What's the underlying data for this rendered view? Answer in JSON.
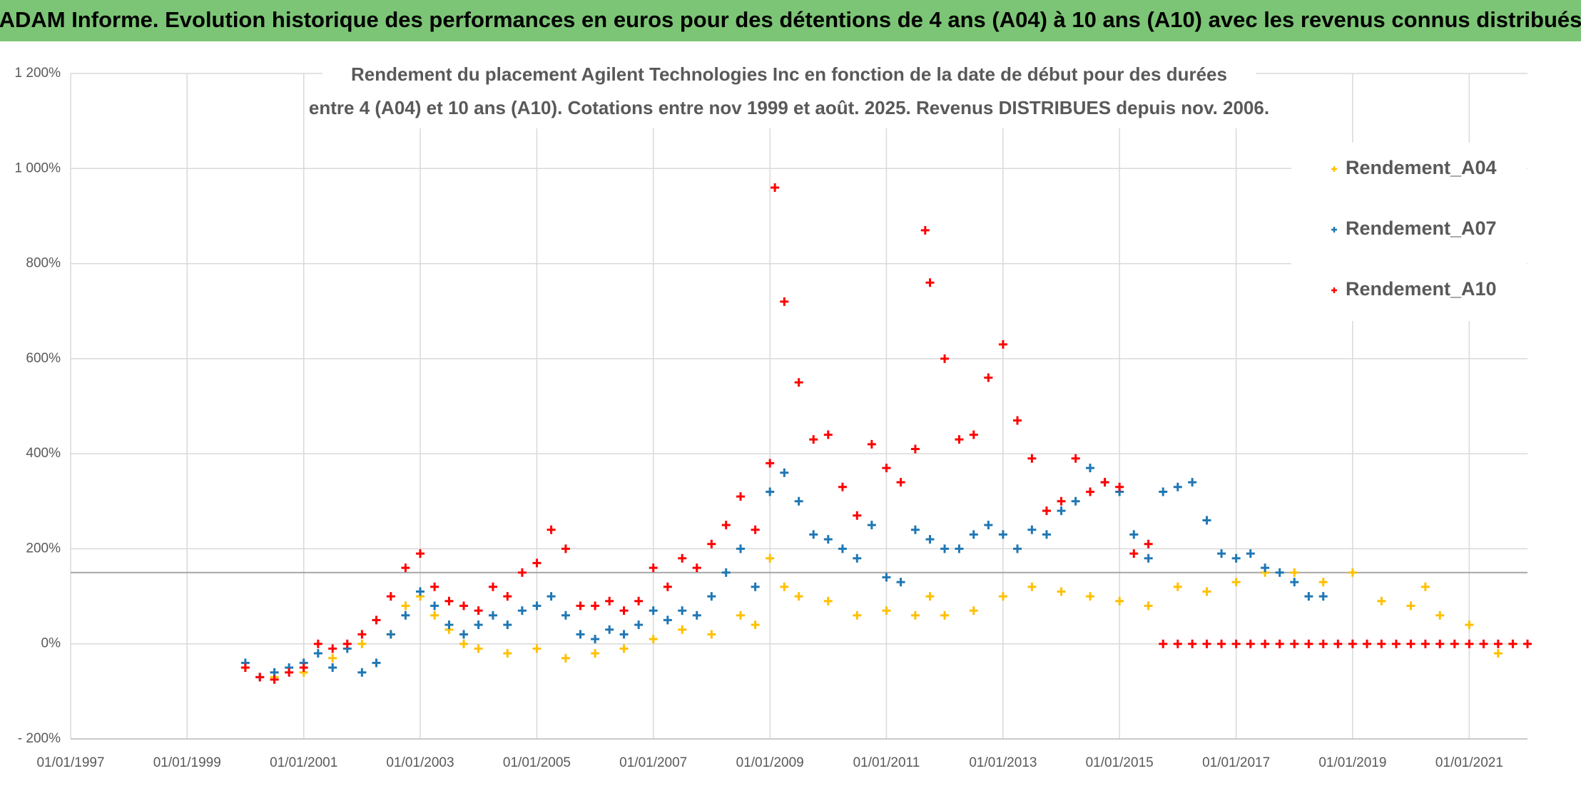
{
  "header": {
    "title": "ADAM Informe. Evolution historique des performances en euros pour des détentions de 4 ans (A04) à 10 ans (A10) avec les revenus connus distribués"
  },
  "chart_data": {
    "type": "scatter",
    "title": "Rendement du placement Agilent Technologies Inc en fonction de la date de début pour des durées",
    "subtitle": "entre 4 (A04) et 10 ans (A10). Cotations entre nov 1999 et août. 2025. Revenus DISTRIBUES depuis nov. 2006.",
    "xlim": [
      "1997-01-01",
      "2022-01-01"
    ],
    "xticks": [
      {
        "value": "1997-01-01",
        "label": "01/01/1997"
      },
      {
        "value": "1999-01-01",
        "label": "01/01/1999"
      },
      {
        "value": "2001-01-01",
        "label": "01/01/2001"
      },
      {
        "value": "2003-01-01",
        "label": "01/01/2003"
      },
      {
        "value": "2005-01-01",
        "label": "01/01/2005"
      },
      {
        "value": "2007-01-01",
        "label": "01/01/2007"
      },
      {
        "value": "2009-01-01",
        "label": "01/01/2009"
      },
      {
        "value": "2011-01-01",
        "label": "01/01/2011"
      },
      {
        "value": "2013-01-01",
        "label": "01/01/2013"
      },
      {
        "value": "2015-01-01",
        "label": "01/01/2015"
      },
      {
        "value": "2017-01-01",
        "label": "01/01/2017"
      },
      {
        "value": "2019-01-01",
        "label": "01/01/2019"
      },
      {
        "value": "2021-01-01",
        "label": "01/01/2021"
      }
    ],
    "ylim": [
      -200,
      1200
    ],
    "yticks": [
      {
        "value": -200,
        "label": "- 200%"
      },
      {
        "value": 0,
        "label": "0%"
      },
      {
        "value": 200,
        "label": "200%"
      },
      {
        "value": 400,
        "label": "400%"
      },
      {
        "value": 600,
        "label": "600%"
      },
      {
        "value": 800,
        "label": "800%"
      },
      {
        "value": 1000,
        "label": "1 000%"
      },
      {
        "value": 1200,
        "label": "1 200%"
      }
    ],
    "reference_line": 150,
    "grid": true,
    "legend": "right",
    "series": [
      {
        "name": "Rendement_A04",
        "color": "#ffc000",
        "x": [
          "2000-01-01",
          "2000-07-01",
          "2001-01-01",
          "2001-07-01",
          "2002-01-01",
          "2002-07-01",
          "2002-10-01",
          "2003-01-01",
          "2003-04-01",
          "2003-07-01",
          "2003-10-01",
          "2004-01-01",
          "2004-07-01",
          "2005-01-01",
          "2005-07-01",
          "2006-01-01",
          "2006-07-01",
          "2007-01-01",
          "2007-07-01",
          "2008-01-01",
          "2008-07-01",
          "2008-10-01",
          "2009-01-01",
          "2009-04-01",
          "2009-07-01",
          "2010-01-01",
          "2010-07-01",
          "2011-01-01",
          "2011-07-01",
          "2011-10-01",
          "2012-01-01",
          "2012-07-01",
          "2013-01-01",
          "2013-07-01",
          "2014-01-01",
          "2014-07-01",
          "2015-01-01",
          "2015-07-01",
          "2016-01-01",
          "2016-07-01",
          "2017-01-01",
          "2017-07-01",
          "2018-01-01",
          "2018-07-01",
          "2019-01-01",
          "2019-07-01",
          "2020-01-01",
          "2020-04-01",
          "2020-07-01",
          "2021-01-01",
          "2021-07-01",
          "2021-10-01"
        ],
        "values": [
          -50,
          -70,
          -60,
          -30,
          0,
          20,
          80,
          100,
          60,
          30,
          0,
          -10,
          -20,
          -10,
          -30,
          -20,
          -10,
          10,
          30,
          20,
          60,
          40,
          180,
          120,
          100,
          90,
          60,
          70,
          60,
          100,
          60,
          70,
          100,
          120,
          110,
          100,
          90,
          80,
          120,
          110,
          130,
          150,
          150,
          130,
          150,
          90,
          80,
          120,
          60,
          40,
          -20,
          0
        ]
      },
      {
        "name": "Rendement_A07",
        "color": "#1f77b4",
        "x": [
          "2000-01-01",
          "2000-04-01",
          "2000-07-01",
          "2000-10-01",
          "2001-01-01",
          "2001-04-01",
          "2001-07-01",
          "2001-10-01",
          "2002-01-01",
          "2002-04-01",
          "2002-07-01",
          "2002-10-01",
          "2003-01-01",
          "2003-04-01",
          "2003-07-01",
          "2003-10-01",
          "2004-01-01",
          "2004-04-01",
          "2004-07-01",
          "2004-10-01",
          "2005-01-01",
          "2005-04-01",
          "2005-07-01",
          "2005-10-01",
          "2006-01-01",
          "2006-04-01",
          "2006-07-01",
          "2006-10-01",
          "2007-01-01",
          "2007-04-01",
          "2007-07-01",
          "2007-10-01",
          "2008-01-01",
          "2008-04-01",
          "2008-07-01",
          "2008-10-01",
          "2009-01-01",
          "2009-04-01",
          "2009-07-01",
          "2009-10-01",
          "2010-01-01",
          "2010-04-01",
          "2010-07-01",
          "2010-10-01",
          "2011-01-01",
          "2011-04-01",
          "2011-07-01",
          "2011-10-01",
          "2012-01-01",
          "2012-04-01",
          "2012-07-01",
          "2012-10-01",
          "2013-01-01",
          "2013-04-01",
          "2013-07-01",
          "2013-10-01",
          "2014-01-01",
          "2014-04-01",
          "2014-07-01",
          "2014-10-01",
          "2015-01-01",
          "2015-04-01",
          "2015-07-01",
          "2015-10-01",
          "2016-01-01",
          "2016-04-01",
          "2016-07-01",
          "2016-10-01",
          "2017-01-01",
          "2017-04-01",
          "2017-07-01",
          "2017-10-01",
          "2018-01-01",
          "2018-04-01",
          "2018-07-01"
        ],
        "values": [
          -40,
          -70,
          -60,
          -50,
          -40,
          -20,
          -50,
          -10,
          -60,
          -40,
          20,
          60,
          110,
          80,
          40,
          20,
          40,
          60,
          40,
          70,
          80,
          100,
          60,
          20,
          10,
          30,
          20,
          40,
          70,
          50,
          70,
          60,
          100,
          150,
          200,
          120,
          320,
          360,
          300,
          230,
          220,
          200,
          180,
          250,
          140,
          130,
          240,
          220,
          200,
          200,
          230,
          250,
          230,
          200,
          240,
          230,
          280,
          300,
          370,
          340,
          320,
          230,
          180,
          320,
          330,
          340,
          260,
          190,
          180,
          190,
          160,
          150,
          130,
          100,
          100
        ]
      },
      {
        "name": "Rendement_A10",
        "color": "#ff0000",
        "x": [
          "2000-01-01",
          "2000-04-01",
          "2000-07-01",
          "2000-10-01",
          "2001-01-01",
          "2001-04-01",
          "2001-07-01",
          "2001-10-01",
          "2002-01-01",
          "2002-04-01",
          "2002-07-01",
          "2002-10-01",
          "2003-01-01",
          "2003-04-01",
          "2003-07-01",
          "2003-10-01",
          "2004-01-01",
          "2004-04-01",
          "2004-07-01",
          "2004-10-01",
          "2005-01-01",
          "2005-04-01",
          "2005-07-01",
          "2005-10-01",
          "2006-01-01",
          "2006-04-01",
          "2006-07-01",
          "2006-10-01",
          "2007-01-01",
          "2007-04-01",
          "2007-07-01",
          "2007-10-01",
          "2008-01-01",
          "2008-04-01",
          "2008-07-01",
          "2008-10-01",
          "2009-01-01",
          "2009-02-01",
          "2009-04-01",
          "2009-07-01",
          "2009-10-01",
          "2010-01-01",
          "2010-04-01",
          "2010-07-01",
          "2010-10-01",
          "2011-01-01",
          "2011-04-01",
          "2011-07-01",
          "2011-09-01",
          "2011-10-01",
          "2012-01-01",
          "2012-04-01",
          "2012-07-01",
          "2012-10-01",
          "2013-01-01",
          "2013-04-01",
          "2013-07-01",
          "2013-10-01",
          "2014-01-01",
          "2014-04-01",
          "2014-07-01",
          "2014-10-01",
          "2015-01-01",
          "2015-04-01",
          "2015-07-01",
          "2015-10-01",
          "2016-01-01",
          "2016-04-01",
          "2016-07-01",
          "2016-10-01",
          "2017-01-01",
          "2017-04-01",
          "2017-07-01",
          "2017-10-01",
          "2018-01-01",
          "2018-04-01",
          "2018-07-01",
          "2018-10-01",
          "2019-01-01",
          "2019-04-01",
          "2019-07-01",
          "2019-10-01",
          "2020-01-01",
          "2020-04-01",
          "2020-07-01",
          "2020-10-01",
          "2021-01-01",
          "2021-04-01",
          "2021-07-01",
          "2021-10-01",
          "2022-01-01"
        ],
        "values": [
          -50,
          -70,
          -75,
          -60,
          -50,
          0,
          -10,
          0,
          20,
          50,
          100,
          160,
          190,
          120,
          90,
          80,
          70,
          120,
          100,
          150,
          170,
          240,
          200,
          80,
          80,
          90,
          70,
          90,
          160,
          120,
          180,
          160,
          210,
          250,
          310,
          240,
          380,
          960,
          720,
          550,
          430,
          440,
          330,
          270,
          420,
          370,
          340,
          410,
          870,
          760,
          600,
          430,
          440,
          560,
          630,
          470,
          390,
          280,
          300,
          390,
          320,
          340,
          330,
          190,
          210,
          0,
          0,
          0,
          0,
          0,
          0,
          0,
          0,
          0,
          0,
          0,
          0,
          0,
          0,
          0,
          0,
          0,
          0,
          0,
          0,
          0,
          0,
          0,
          0,
          0,
          0
        ]
      }
    ]
  }
}
